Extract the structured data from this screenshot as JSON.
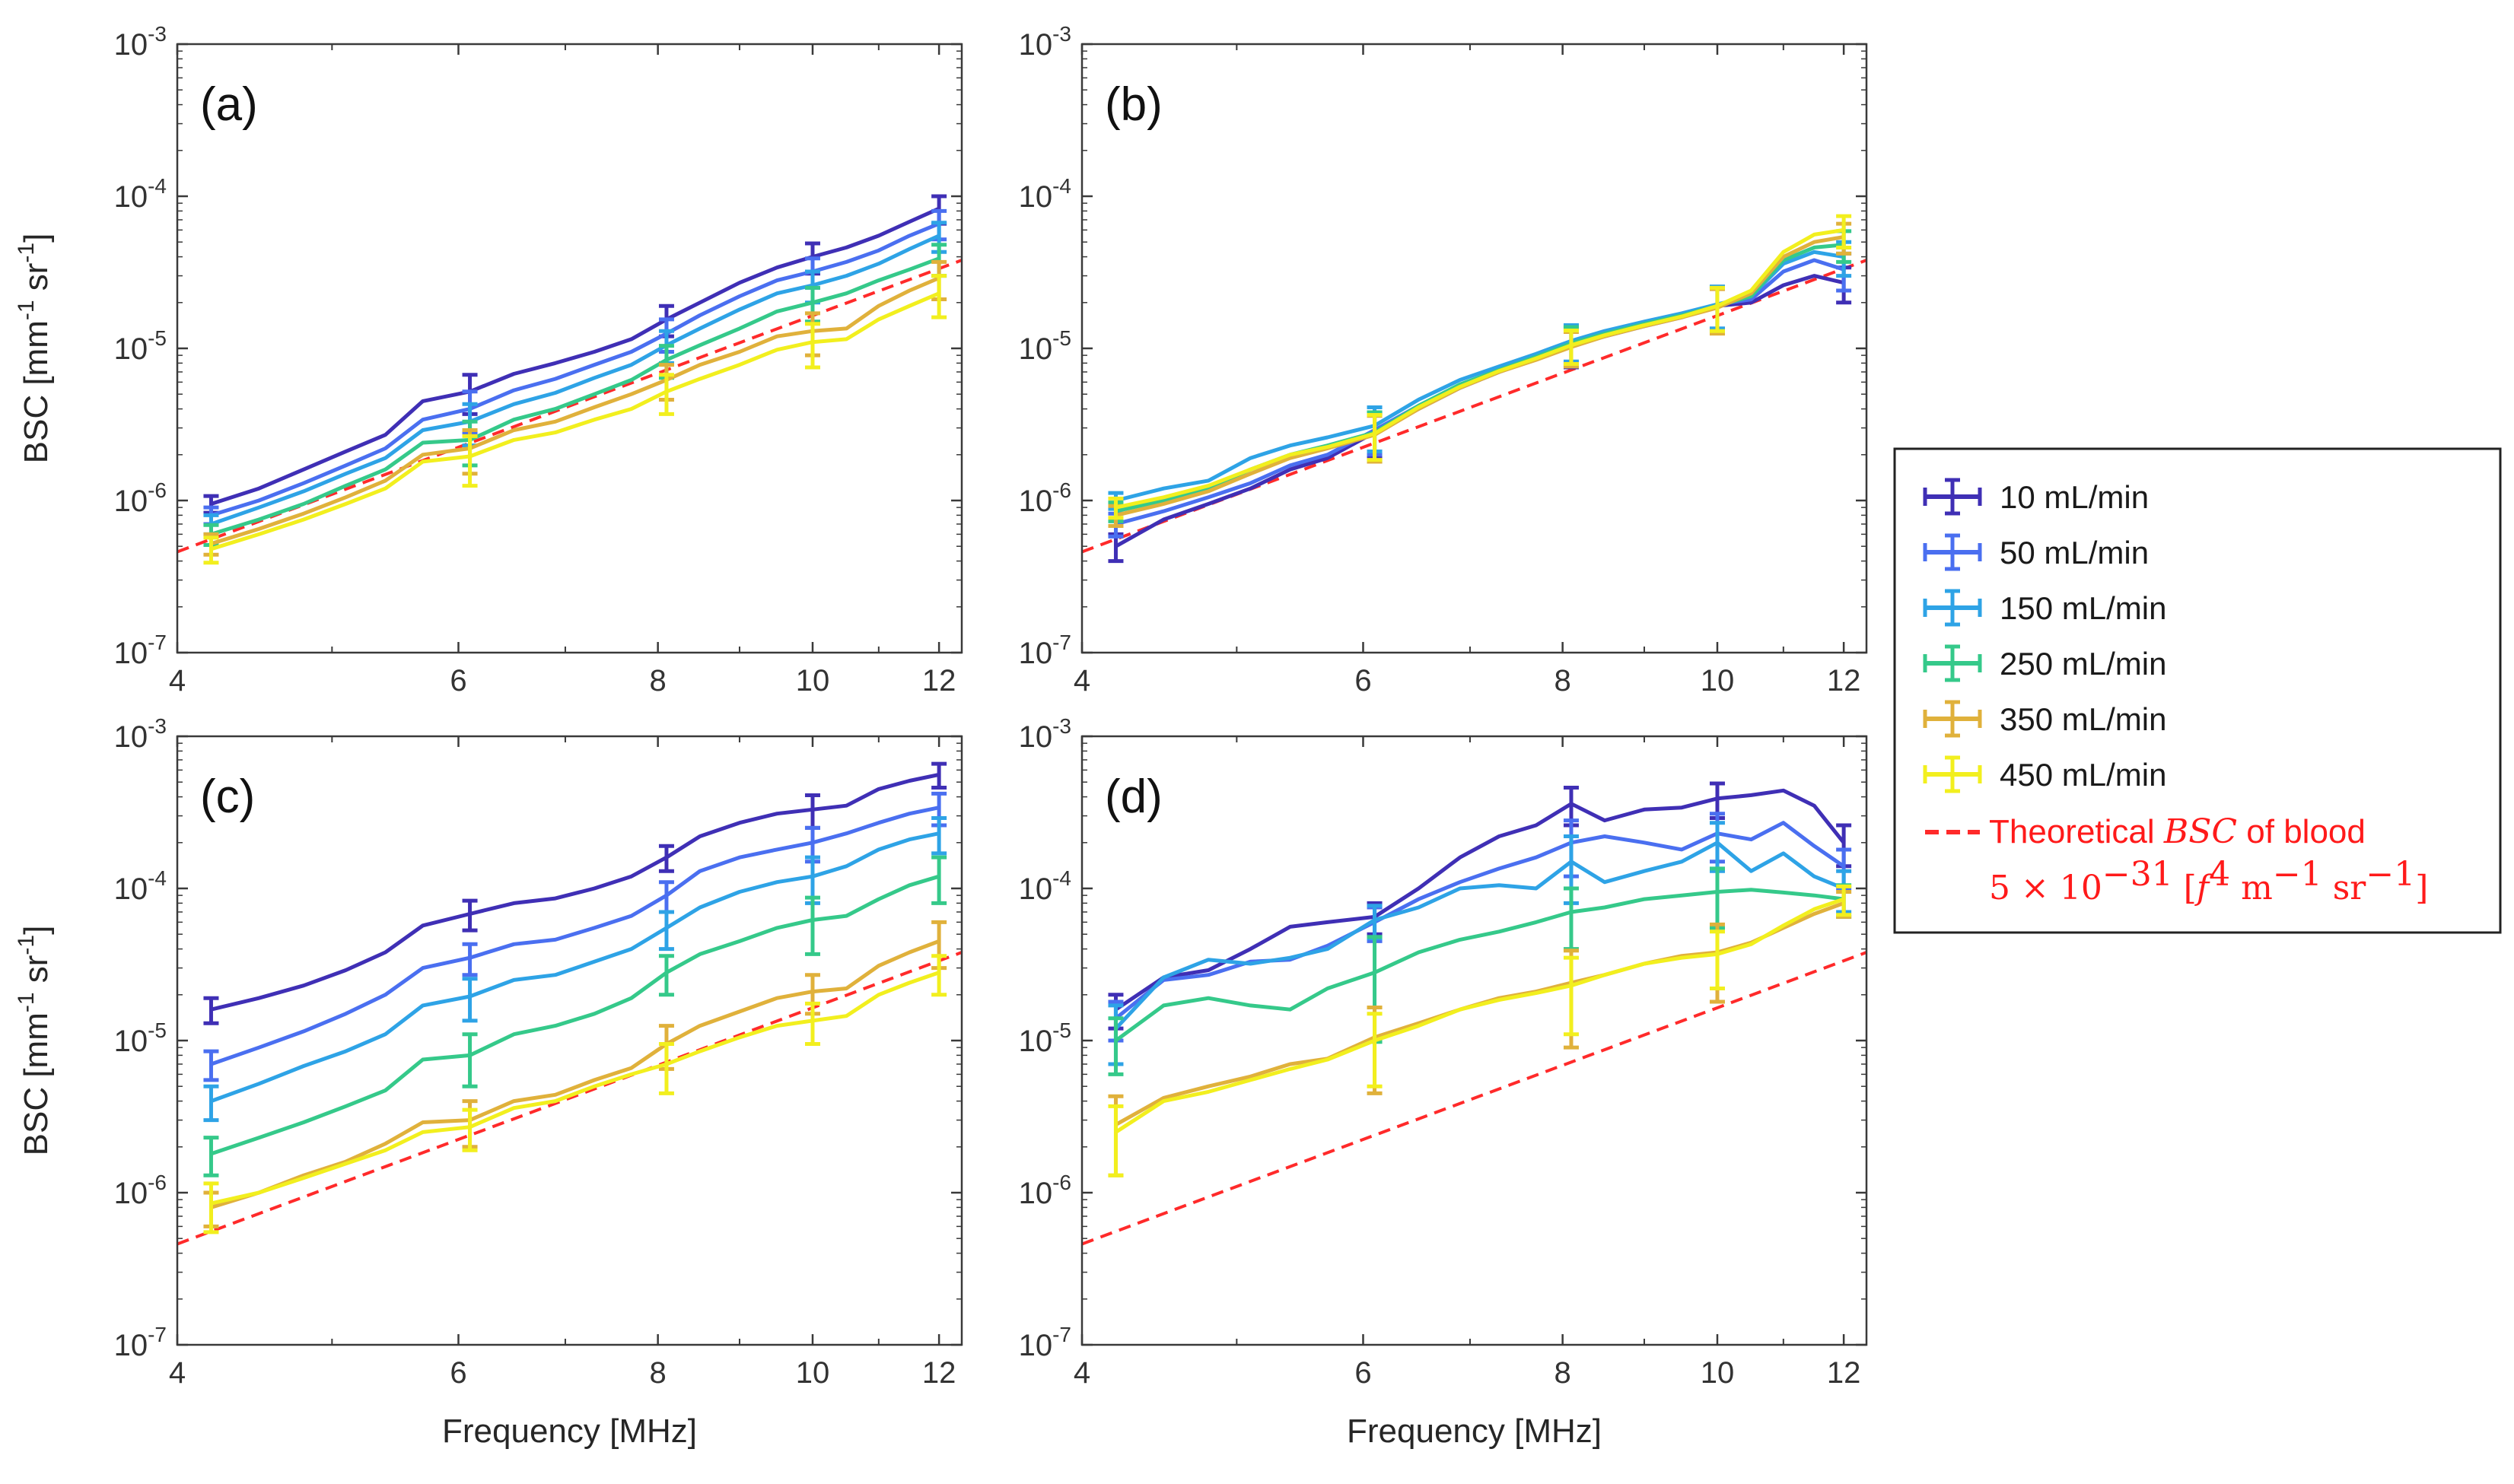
{
  "chart_data": {
    "type": "line",
    "xlabel": "Frequency [MHz]",
    "ylabel": "BSC [mm",
    "ylabel_exp": "-1",
    "ylabel_mid": " sr",
    "ylabel_end": "]",
    "xscale": "log",
    "yscale": "log",
    "xlim": [
      4,
      12.4
    ],
    "ylim": [
      1e-07,
      0.001
    ],
    "xticks": [
      4,
      6,
      8,
      10,
      12
    ],
    "xtick_labels": [
      "4",
      "6",
      "8",
      "10",
      "12"
    ],
    "yticks": [
      1e-07,
      1e-06,
      1e-05,
      0.0001,
      0.001
    ],
    "ytick_base": "10",
    "ytick_exps": [
      "-7",
      "-6",
      "-5",
      "-4",
      "-3"
    ],
    "x": [
      4.2,
      4.5,
      4.8,
      5.1,
      5.4,
      5.7,
      6.1,
      6.5,
      6.9,
      7.3,
      7.7,
      8.1,
      8.5,
      9.0,
      9.5,
      10.0,
      10.5,
      11.0,
      11.5,
      12.0
    ],
    "errorbar_x": [
      4.2,
      6.1,
      8.1,
      10.0,
      12.0
    ],
    "legend": {
      "position": "right",
      "entries": [
        "10 mL/min",
        "50 mL/min",
        "150 mL/min",
        "250 mL/min",
        "350 mL/min",
        "450 mL/min"
      ],
      "theory_label_prefix": "Theoretical ",
      "theory_label_math": "BSC",
      "theory_label_suffix": " of blood",
      "theory_formula_a": "5 × 10",
      "theory_formula_exp1": "−31",
      "theory_formula_b": " [",
      "theory_formula_f": "f",
      "theory_formula_exp2": "4",
      "theory_formula_c": " m",
      "theory_formula_exp3": "−1",
      "theory_formula_d": " sr",
      "theory_formula_exp4": "−1",
      "theory_formula_e": "]"
    },
    "colors": {
      "10": "#3f2fb5",
      "50": "#4a6ff0",
      "150": "#2ea3e6",
      "250": "#35c98a",
      "350": "#e0b13b",
      "450": "#f2ef1e",
      "theory": "#ff2a2a"
    },
    "theory": {
      "name": "Theoretical BSC of blood",
      "coefficient": 5e-31,
      "exponent": 4,
      "note": "BSC = 5e-31 * f^4 (f in Hz), shown in mm^-1 sr^-1",
      "x": [
        4,
        12.4
      ],
      "y": [
        4.6e-07,
        3.8e-05
      ]
    },
    "panels": [
      {
        "label": "(a)",
        "series": [
          {
            "name": "10 mL/min",
            "values": [
              9.5e-07,
              1.2e-06,
              1.6e-06,
              2.1e-06,
              2.7e-06,
              4.5e-06,
              5.2e-06,
              6.8e-06,
              8e-06,
              9.5e-06,
              1.15e-05,
              1.55e-05,
              2e-05,
              2.7e-05,
              3.4e-05,
              4e-05,
              4.6e-05,
              5.5e-05,
              6.8e-05,
              8.3e-05
            ],
            "err": [
              1.2e-07,
              1.5e-06,
              3.5e-06,
              9e-06,
              1.7e-05
            ]
          },
          {
            "name": "50 mL/min",
            "values": [
              8e-07,
              1e-06,
              1.3e-06,
              1.7e-06,
              2.2e-06,
              3.4e-06,
              4e-06,
              5.3e-06,
              6.3e-06,
              7.8e-06,
              9.5e-06,
              1.25e-05,
              1.65e-05,
              2.2e-05,
              2.8e-05,
              3.2e-05,
              3.7e-05,
              4.4e-05,
              5.5e-05,
              6.6e-05
            ],
            "err": [
              1e-07,
              1.2e-06,
              3e-06,
              7e-06,
              1.4e-05
            ]
          },
          {
            "name": "150 mL/min",
            "values": [
              7e-07,
              9e-07,
              1.15e-06,
              1.5e-06,
              1.9e-06,
              2.9e-06,
              3.3e-06,
              4.3e-06,
              5.1e-06,
              6.4e-06,
              7.8e-06,
              1.05e-05,
              1.35e-05,
              1.8e-05,
              2.3e-05,
              2.6e-05,
              3e-05,
              3.6e-05,
              4.5e-05,
              5.5e-05
            ],
            "err": [
              1e-07,
              1e-06,
              2.5e-06,
              6e-06,
              1.2e-05
            ]
          },
          {
            "name": "250 mL/min",
            "values": [
              6e-07,
              7.5e-07,
              9.5e-07,
              1.25e-06,
              1.6e-06,
              2.4e-06,
              2.5e-06,
              3.4e-06,
              4e-06,
              5e-06,
              6.2e-06,
              8.4e-06,
              1.05e-05,
              1.35e-05,
              1.75e-05,
              2e-05,
              2.3e-05,
              2.8e-05,
              3.3e-05,
              3.9e-05
            ],
            "err": [
              9e-08,
              8e-07,
              2e-06,
              5e-06,
              9e-06
            ]
          },
          {
            "name": "350 mL/min",
            "values": [
              5.2e-07,
              6.5e-07,
              8.2e-07,
              1.05e-06,
              1.35e-06,
              2e-06,
              2.2e-06,
              2.9e-06,
              3.3e-06,
              4.1e-06,
              5e-06,
              6.2e-06,
              7.8e-06,
              9.5e-06,
              1.2e-05,
              1.3e-05,
              1.35e-05,
              1.9e-05,
              2.4e-05,
              2.9e-05
            ],
            "err": [
              8e-08,
              7e-07,
              1.6e-06,
              4e-06,
              8e-06
            ]
          },
          {
            "name": "450 mL/min",
            "values": [
              4.8e-07,
              6e-07,
              7.5e-07,
              9.5e-07,
              1.2e-06,
              1.8e-06,
              1.95e-06,
              2.5e-06,
              2.8e-06,
              3.4e-06,
              4e-06,
              5.2e-06,
              6.3e-06,
              7.8e-06,
              9.8e-06,
              1.1e-05,
              1.15e-05,
              1.55e-05,
              1.9e-05,
              2.3e-05
            ],
            "err": [
              9e-08,
              7e-07,
              1.5e-06,
              3.5e-06,
              7e-06
            ]
          }
        ]
      },
      {
        "label": "(b)",
        "series": [
          {
            "name": "10 mL/min",
            "values": [
              5e-07,
              7.5e-07,
              9.5e-07,
              1.2e-06,
              1.6e-06,
              1.9e-06,
              2.8e-06,
              4e-06,
              5.5e-06,
              7e-06,
              8.5e-06,
              1.05e-05,
              1.2e-05,
              1.4e-05,
              1.6e-05,
              1.9e-05,
              2e-05,
              2.6e-05,
              3e-05,
              2.7e-05
            ],
            "err": [
              1e-07,
              9e-07,
              3e-06,
              6e-06,
              7e-06
            ]
          },
          {
            "name": "50 mL/min",
            "values": [
              7e-07,
              8.5e-07,
              1.05e-06,
              1.3e-06,
              1.7e-06,
              2e-06,
              2.9e-06,
              4.2e-06,
              5.7e-06,
              7.2e-06,
              8.8e-06,
              1.1e-05,
              1.25e-05,
              1.45e-05,
              1.65e-05,
              1.95e-05,
              2.1e-05,
              3.2e-05,
              3.8e-05,
              3.3e-05
            ],
            "err": [
              1.2e-07,
              9e-07,
              3e-06,
              6e-06,
              9e-06
            ]
          },
          {
            "name": "150 mL/min",
            "values": [
              1e-06,
              1.2e-06,
              1.35e-06,
              1.9e-06,
              2.3e-06,
              2.6e-06,
              3.1e-06,
              4.6e-06,
              6.2e-06,
              7.6e-06,
              9.2e-06,
              1.12e-05,
              1.3e-05,
              1.5e-05,
              1.7e-05,
              1.95e-05,
              2.2e-05,
              3.6e-05,
              4.3e-05,
              4e-05
            ],
            "err": [
              1.2e-07,
              1e-06,
              3e-06,
              6e-06,
              1e-05
            ]
          },
          {
            "name": "250 mL/min",
            "values": [
              8.5e-07,
              1e-06,
              1.2e-06,
              1.6e-06,
              2e-06,
              2.3e-06,
              2.8e-06,
              4.2e-06,
              5.8e-06,
              7.2e-06,
              8.8e-06,
              1.08e-05,
              1.25e-05,
              1.45e-05,
              1.65e-05,
              1.9e-05,
              2.2e-05,
              3.8e-05,
              4.6e-05,
              4.8e-05
            ],
            "err": [
              1.2e-07,
              1e-06,
              3e-06,
              6e-06,
              1.1e-05
            ]
          },
          {
            "name": "350 mL/min",
            "values": [
              8e-07,
              9.5e-07,
              1.15e-06,
              1.5e-06,
              1.9e-06,
              2.2e-06,
              2.7e-06,
              4e-06,
              5.5e-06,
              7e-06,
              8.4e-06,
              1.02e-05,
              1.2e-05,
              1.4e-05,
              1.6e-05,
              1.85e-05,
              2.3e-05,
              4e-05,
              5e-05,
              5.4e-05
            ],
            "err": [
              1.2e-07,
              9e-07,
              2.6e-06,
              6e-06,
              1.2e-05
            ]
          },
          {
            "name": "450 mL/min",
            "values": [
              9e-07,
              1.05e-06,
              1.25e-06,
              1.6e-06,
              2e-06,
              2.25e-06,
              2.75e-06,
              4.1e-06,
              5.6e-06,
              7.1e-06,
              8.6e-06,
              1.05e-05,
              1.22e-05,
              1.42e-05,
              1.62e-05,
              1.9e-05,
              2.4e-05,
              4.3e-05,
              5.6e-05,
              6e-05
            ],
            "err": [
              1.3e-07,
              9e-07,
              2.6e-06,
              6e-06,
              1.4e-05
            ]
          }
        ]
      },
      {
        "label": "(c)",
        "series": [
          {
            "name": "10 mL/min",
            "values": [
              1.6e-05,
              1.9e-05,
              2.3e-05,
              2.9e-05,
              3.8e-05,
              5.7e-05,
              6.8e-05,
              8e-05,
              8.6e-05,
              0.0001,
              0.00012,
              0.00016,
              0.00022,
              0.00027,
              0.00031,
              0.00033,
              0.00035,
              0.00045,
              0.00051,
              0.00056
            ],
            "err": [
              3e-06,
              1.5e-05,
              3e-05,
              8e-05,
              0.0001
            ]
          },
          {
            "name": "50 mL/min",
            "values": [
              7e-06,
              9e-06,
              1.15e-05,
              1.5e-05,
              2e-05,
              3e-05,
              3.5e-05,
              4.3e-05,
              4.6e-05,
              5.5e-05,
              6.6e-05,
              9e-05,
              0.00013,
              0.00016,
              0.00018,
              0.0002,
              0.00023,
              0.00027,
              0.00031,
              0.00034
            ],
            "err": [
              1.5e-06,
              8e-06,
              2e-05,
              5e-05,
              8e-05
            ]
          },
          {
            "name": "150 mL/min",
            "values": [
              4e-06,
              5.2e-06,
              6.8e-06,
              8.5e-06,
              1.1e-05,
              1.7e-05,
              1.95e-05,
              2.5e-05,
              2.7e-05,
              3.3e-05,
              4e-05,
              5.5e-05,
              7.5e-05,
              9.5e-05,
              0.00011,
              0.00012,
              0.00014,
              0.00018,
              0.00021,
              0.00023
            ],
            "err": [
              1e-06,
              6e-06,
              1.5e-05,
              4e-05,
              6e-05
            ]
          },
          {
            "name": "250 mL/min",
            "values": [
              1.8e-06,
              2.3e-06,
              2.9e-06,
              3.7e-06,
              4.7e-06,
              7.5e-06,
              8e-06,
              1.1e-05,
              1.25e-05,
              1.5e-05,
              1.9e-05,
              2.8e-05,
              3.7e-05,
              4.5e-05,
              5.5e-05,
              6.2e-05,
              6.6e-05,
              8.5e-05,
              0.000105,
              0.00012
            ],
            "err": [
              5e-07,
              3e-06,
              8e-06,
              2.5e-05,
              4e-05
            ]
          },
          {
            "name": "350 mL/min",
            "values": [
              8e-07,
              1e-06,
              1.3e-06,
              1.6e-06,
              2.1e-06,
              2.9e-06,
              3e-06,
              4e-06,
              4.4e-06,
              5.5e-06,
              6.6e-06,
              9.5e-06,
              1.25e-05,
              1.55e-05,
              1.9e-05,
              2.1e-05,
              2.2e-05,
              3.1e-05,
              3.8e-05,
              4.5e-05
            ],
            "err": [
              2e-07,
              1e-06,
              3e-06,
              6e-06,
              1.5e-05
            ]
          },
          {
            "name": "450 mL/min",
            "values": [
              8.5e-07,
              1e-06,
              1.25e-06,
              1.55e-06,
              1.9e-06,
              2.5e-06,
              2.7e-06,
              3.6e-06,
              4e-06,
              5e-06,
              6e-06,
              7e-06,
              8.5e-06,
              1.05e-05,
              1.25e-05,
              1.35e-05,
              1.45e-05,
              2e-05,
              2.4e-05,
              2.8e-05
            ],
            "err": [
              3e-07,
              8e-07,
              2.5e-06,
              4e-06,
              8e-06
            ]
          }
        ]
      },
      {
        "label": "(d)",
        "series": [
          {
            "name": "10 mL/min",
            "values": [
              1.6e-05,
              2.6e-05,
              2.9e-05,
              4e-05,
              5.6e-05,
              6e-05,
              6.5e-05,
              0.0001,
              0.00016,
              0.00022,
              0.00026,
              0.00036,
              0.00028,
              0.00033,
              0.00034,
              0.00039,
              0.00041,
              0.00044,
              0.00035,
              0.0002
            ],
            "err": [
              4e-06,
              1.5e-05,
              0.0001,
              0.0001,
              6e-05
            ]
          },
          {
            "name": "50 mL/min",
            "values": [
              1.4e-05,
              2.5e-05,
              2.7e-05,
              3.3e-05,
              3.4e-05,
              4.2e-05,
              6e-05,
              8.5e-05,
              0.00011,
              0.000135,
              0.00016,
              0.0002,
              0.00022,
              0.0002,
              0.00018,
              0.00023,
              0.00021,
              0.00027,
              0.00019,
              0.00014
            ],
            "err": [
              4e-06,
              1.5e-05,
              8e-05,
              8e-05,
              4e-05
            ]
          },
          {
            "name": "150 mL/min",
            "values": [
              1.2e-05,
              2.6e-05,
              3.4e-05,
              3.2e-05,
              3.5e-05,
              4e-05,
              6.2e-05,
              7.5e-05,
              0.0001,
              0.000105,
              0.0001,
              0.00015,
              0.00011,
              0.00013,
              0.00015,
              0.0002,
              0.00013,
              0.00017,
              0.00012,
              0.0001
            ],
            "err": [
              5e-06,
              1.5e-05,
              7e-05,
              7e-05,
              3e-05
            ]
          },
          {
            "name": "250 mL/min",
            "values": [
              1e-05,
              1.7e-05,
              1.9e-05,
              1.7e-05,
              1.6e-05,
              2.2e-05,
              2.8e-05,
              3.8e-05,
              4.6e-05,
              5.2e-05,
              6e-05,
              7e-05,
              7.5e-05,
              8.5e-05,
              9e-05,
              9.5e-05,
              9.8e-05,
              9.4e-05,
              9e-05,
              8.5e-05
            ],
            "err": [
              4e-06,
              2e-05,
              3e-05,
              4e-05,
              2e-05
            ]
          },
          {
            "name": "350 mL/min",
            "values": [
              2.8e-06,
              4.2e-06,
              5e-06,
              5.8e-06,
              7e-06,
              7.6e-06,
              1.05e-05,
              1.3e-05,
              1.6e-05,
              1.9e-05,
              2.1e-05,
              2.4e-05,
              2.7e-05,
              3.2e-05,
              3.6e-05,
              3.8e-05,
              4.4e-05,
              5.5e-05,
              6.8e-05,
              8e-05
            ],
            "err": [
              1.5e-06,
              6e-06,
              1.5e-05,
              2e-05,
              1.5e-05
            ]
          },
          {
            "name": "450 mL/min",
            "values": [
              2.5e-06,
              4e-06,
              4.6e-06,
              5.5e-06,
              6.5e-06,
              7.5e-06,
              1e-05,
              1.25e-05,
              1.6e-05,
              1.85e-05,
              2.05e-05,
              2.3e-05,
              2.7e-05,
              3.2e-05,
              3.5e-05,
              3.7e-05,
              4.3e-05,
              5.7e-05,
              7.3e-05,
              8.5e-05
            ],
            "err": [
              1.2e-06,
              5e-06,
              1.2e-05,
              1.5e-05,
              1.8e-05
            ]
          }
        ]
      }
    ]
  }
}
